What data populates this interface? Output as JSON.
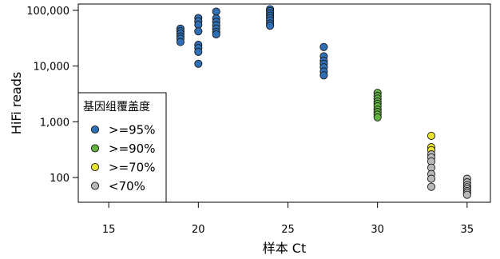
{
  "chart_data": {
    "type": "scatter",
    "xlabel": "样本 Ct",
    "ylabel": "HiFi reads",
    "y_scale": "log",
    "xlim": [
      13.3,
      36.3
    ],
    "ylim": [
      36,
      130000
    ],
    "x_ticks": [
      15,
      20,
      25,
      30,
      35
    ],
    "y_ticks": [
      100,
      1000,
      10000,
      100000
    ],
    "y_tick_labels": [
      "100",
      "1,000",
      "10,000",
      "100,000"
    ],
    "grid": false,
    "legend": {
      "title": "基因组覆盖度",
      "placement": "bottom-left"
    },
    "series": [
      {
        "name": ">=95%",
        "color": "#2f6fb5",
        "x": [
          19,
          19,
          19,
          19,
          19,
          19,
          20,
          20,
          20,
          20,
          20,
          20,
          20,
          20,
          21,
          21,
          21,
          21,
          21,
          21,
          21,
          24,
          24,
          24,
          24,
          24,
          24,
          24,
          24,
          27,
          27,
          27,
          27,
          27,
          27,
          27
        ],
        "y": [
          47000,
          42000,
          38000,
          34000,
          31000,
          27000,
          73000,
          64000,
          55000,
          42000,
          24000,
          21000,
          18000,
          11000,
          95000,
          72000,
          62000,
          54000,
          47000,
          41000,
          37000,
          105000,
          97000,
          88000,
          80000,
          73000,
          66000,
          58000,
          53000,
          22000,
          15000,
          12500,
          11000,
          9500,
          8000,
          6800
        ]
      },
      {
        "name": ">=90%",
        "color": "#62b23e",
        "x": [
          30,
          30,
          30,
          30,
          30,
          30,
          30,
          30,
          30,
          30
        ],
        "y": [
          3300,
          2900,
          2600,
          2300,
          2100,
          1900,
          1650,
          1500,
          1350,
          1200
        ]
      },
      {
        "name": ">=70%",
        "color": "#e8e233",
        "x": [
          33,
          33,
          33
        ],
        "y": [
          560,
          350,
          310
        ]
      },
      {
        "name": "<70%",
        "color": "#b8b8b8",
        "x": [
          33,
          33,
          33,
          33,
          33,
          33,
          33,
          35,
          35,
          35,
          35,
          35,
          35,
          35,
          35
        ],
        "y": [
          260,
          230,
          195,
          150,
          115,
          95,
          68,
          95,
          82,
          73,
          67,
          62,
          57,
          53,
          49
        ]
      }
    ]
  }
}
